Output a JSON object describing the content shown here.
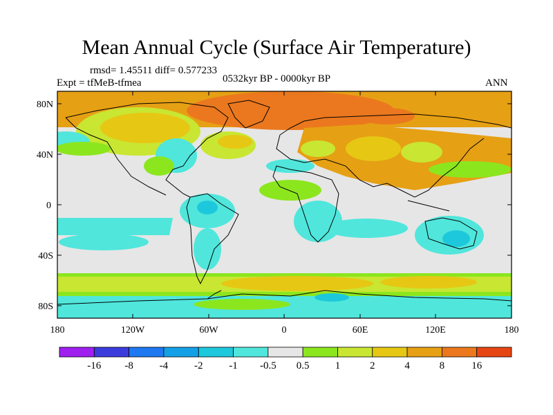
{
  "title": "Mean Annual Cycle (Surface Air Temperature)",
  "stats": "rmsd= 1.45511 diff= 0.577233",
  "experiment": "Expt = tfMeB-tfmea",
  "period": "0532kyr BP - 0000kyr BP",
  "season": "ANN",
  "map": {
    "lat_labels": [
      "80N",
      "40N",
      "0",
      "40S",
      "80S"
    ],
    "lon_labels": [
      "180",
      "120W",
      "60W",
      "0",
      "60E",
      "120E",
      "180"
    ]
  },
  "colorbar": {
    "colors": [
      "#a020f0",
      "#3c3cdc",
      "#1e78f0",
      "#14a0e6",
      "#1ec8dc",
      "#50e6dc",
      "#e6e6e6",
      "#8ce61e",
      "#c8e632",
      "#e6c814",
      "#e6a014",
      "#eb781e",
      "#e64614"
    ],
    "labels": [
      "-16",
      "-8",
      "-4",
      "-2",
      "-1",
      "-0.5",
      "0.5",
      "1",
      "2",
      "4",
      "8",
      "16"
    ]
  }
}
